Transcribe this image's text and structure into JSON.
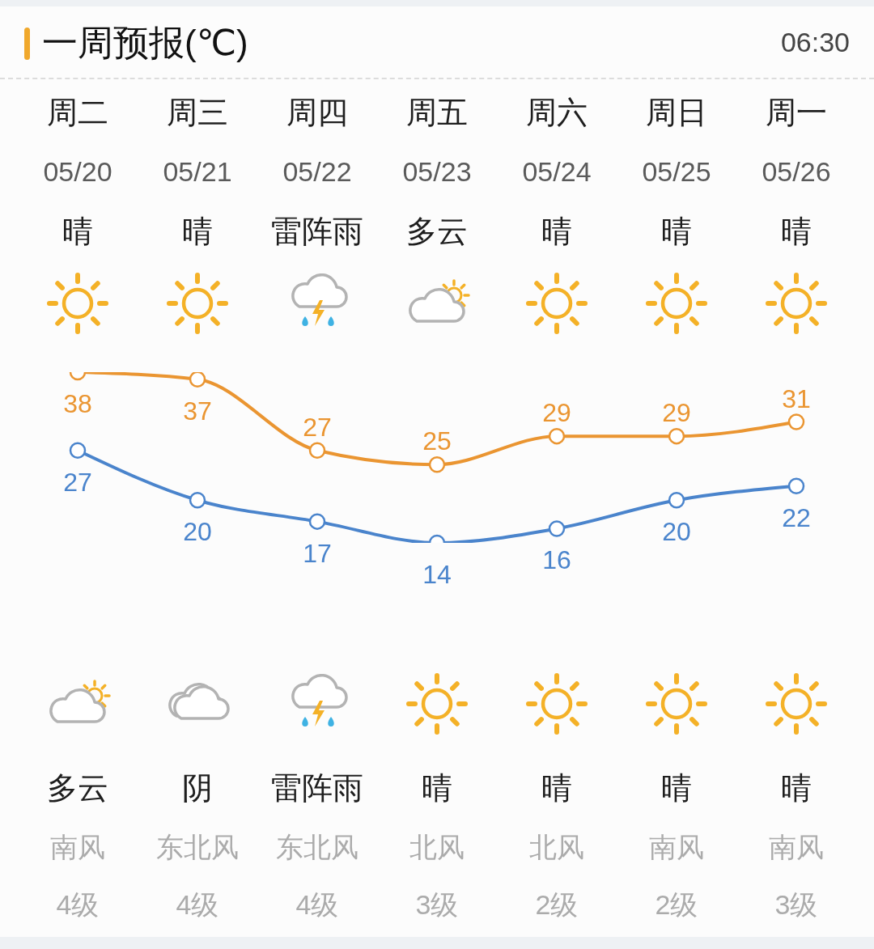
{
  "chart_data": {
    "type": "line",
    "title": "一周预报(℃)",
    "subtitle": "06:30",
    "categories": [
      "周二",
      "周三",
      "周四",
      "周五",
      "周六",
      "周日",
      "周一"
    ],
    "series": [
      {
        "color": "#ea9531",
        "values": [
          38,
          37,
          27,
          25,
          29,
          29,
          31
        ]
      },
      {
        "color": "#4a84cc",
        "values": [
          27,
          20,
          17,
          14,
          16,
          20,
          22
        ]
      }
    ],
    "data_labels": true,
    "marker": "circle",
    "line_style": "solid",
    "tick_labels": "x",
    "annotations": [
      "05/20",
      "05/21",
      "05/22",
      "05/23",
      "05/24",
      "05/25",
      "05/26",
      "晴",
      "晴",
      "雷阵雨",
      "多云",
      "晴",
      "晴",
      "晴",
      "多云",
      "阴",
      "雷阵雨",
      "晴",
      "晴",
      "晴",
      "晴",
      "南风",
      "东北风",
      "东北风",
      "北风",
      "北风",
      "南风",
      "南风",
      "4级",
      "4级",
      "4级",
      "3级",
      "2级",
      "2级",
      "3级"
    ]
  }
}
